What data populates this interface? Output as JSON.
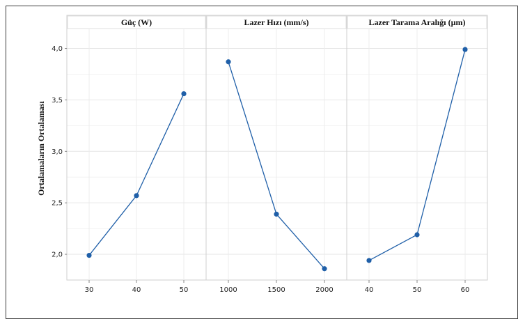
{
  "chart_data": {
    "type": "line",
    "ylabel": "Ortalamaların Ortalaması",
    "ylim": [
      1.75,
      4.2
    ],
    "yticks": [
      "2,0",
      "2,5",
      "3,0",
      "3,5",
      "4,0"
    ],
    "ytick_values": [
      2.0,
      2.5,
      3.0,
      3.5,
      4.0
    ],
    "grid": true,
    "color": "#1f5fa8",
    "panels": [
      {
        "title": "Güç (W)",
        "categories": [
          "30",
          "40",
          "50"
        ],
        "values": [
          1.99,
          2.57,
          3.56
        ]
      },
      {
        "title": "Lazer Hızı (mm/s)",
        "categories": [
          "1000",
          "1500",
          "2000"
        ],
        "values": [
          3.87,
          2.39,
          1.86
        ]
      },
      {
        "title": "Lazer Tarama Aralığı (µm)",
        "categories": [
          "40",
          "50",
          "60"
        ],
        "values": [
          1.94,
          2.19,
          3.99
        ]
      }
    ]
  }
}
